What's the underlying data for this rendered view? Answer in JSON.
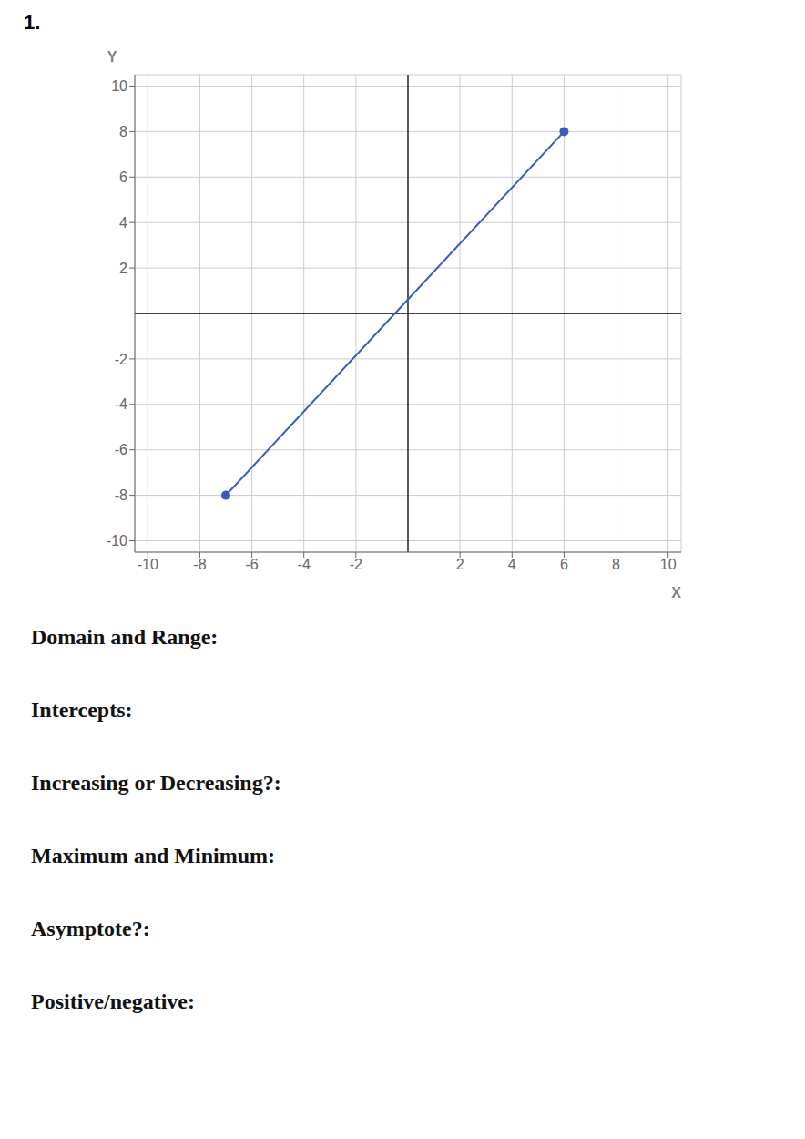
{
  "chart_data": {
    "type": "line",
    "title": "1.",
    "x": [
      -7,
      6
    ],
    "values": [
      -8,
      8
    ],
    "color": "#3a5abf",
    "marker": "circle",
    "xlim": [
      -10.5,
      10.5
    ],
    "ylim": [
      -10.5,
      10.5
    ],
    "xticks": [
      -10,
      -8,
      -6,
      -4,
      -2,
      2,
      4,
      6,
      8,
      10
    ],
    "yticks": [
      -10,
      -8,
      -6,
      -4,
      -2,
      2,
      4,
      6,
      8,
      10
    ],
    "xlabel": "X",
    "ylabel": "Y",
    "grid": true,
    "annotations": [
      "Domain and Range:",
      "Intercepts:",
      "Increasing or Decreasing?:",
      "Maximum and Minimum:",
      "Asymptote?:",
      "Positive/negative:"
    ]
  }
}
